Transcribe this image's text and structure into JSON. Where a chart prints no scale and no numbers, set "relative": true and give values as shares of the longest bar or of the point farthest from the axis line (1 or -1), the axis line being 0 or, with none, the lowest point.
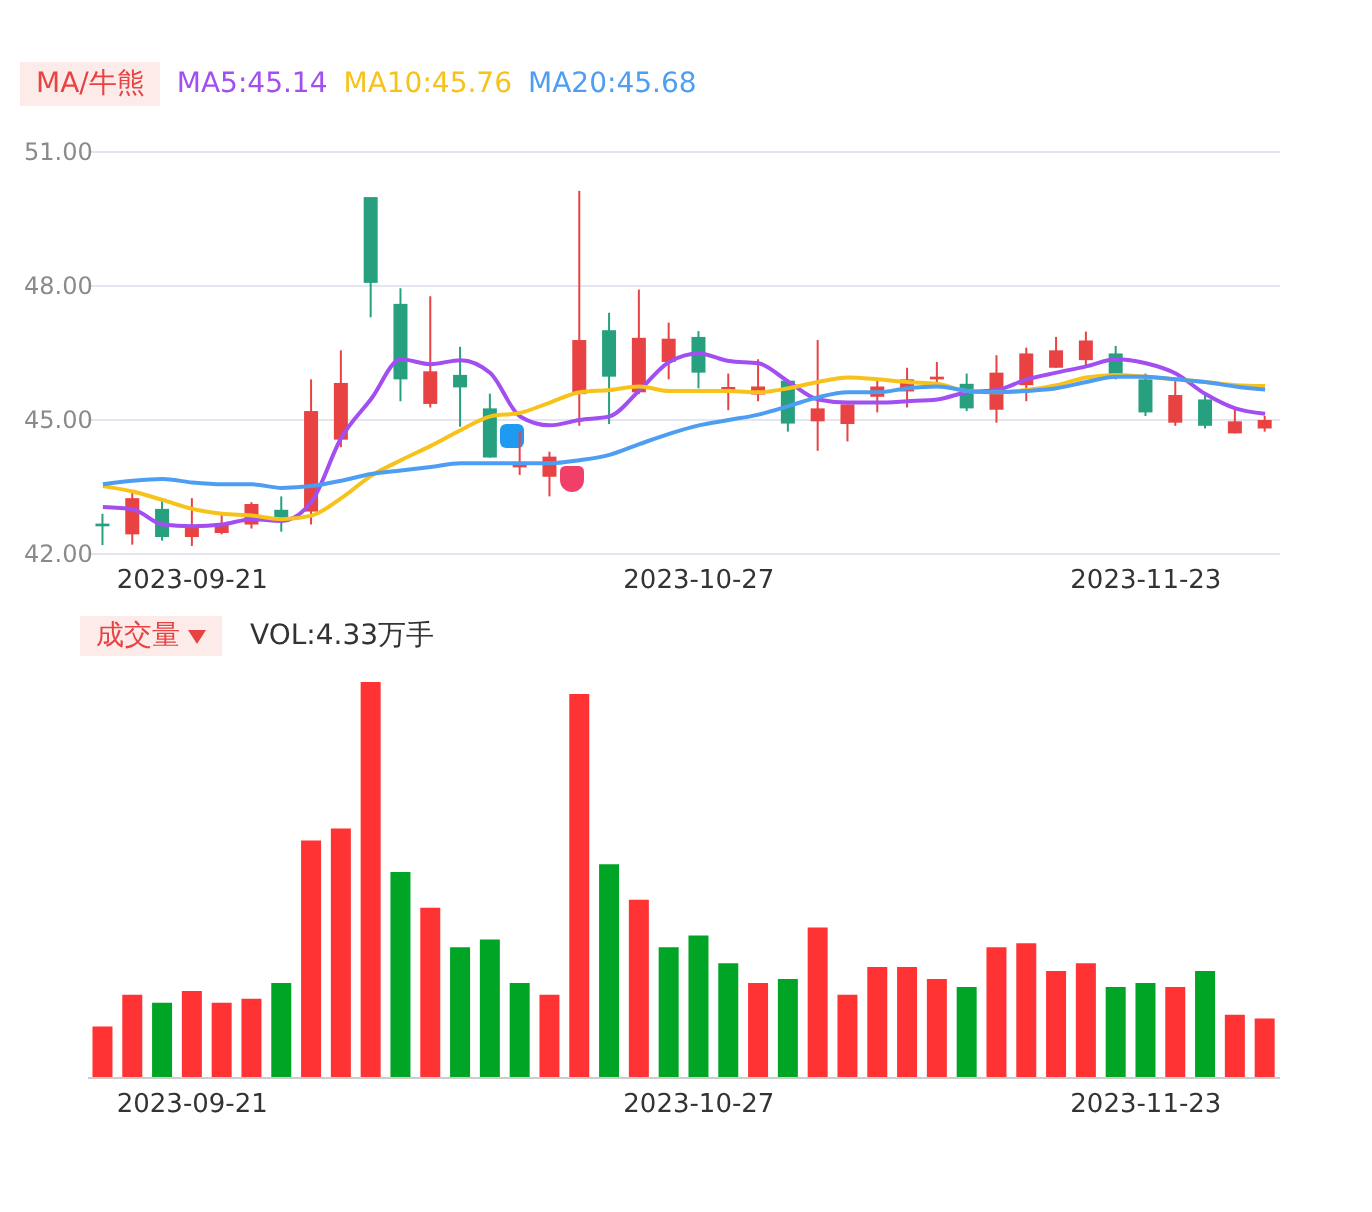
{
  "chart_data": [
    {
      "type": "candlestick",
      "legend_title": "MA/牛熊",
      "legend": "top left",
      "grid": "y",
      "categories": [
        null,
        null,
        null,
        "2023-09-21",
        null,
        null,
        null,
        null,
        null,
        null,
        null,
        null,
        null,
        null,
        null,
        null,
        null,
        null,
        null,
        null,
        "2023-10-27",
        null,
        null,
        null,
        null,
        null,
        null,
        null,
        null,
        null,
        null,
        null,
        null,
        null,
        null,
        "2023-11-23",
        null,
        null,
        null,
        null
      ],
      "ohlc": [
        [
          42.68,
          42.9,
          42.2,
          42.62
        ],
        [
          42.44,
          43.38,
          42.21,
          43.25
        ],
        [
          43.01,
          43.21,
          42.3,
          42.38
        ],
        [
          42.38,
          43.25,
          42.18,
          42.6
        ],
        [
          42.47,
          42.89,
          42.44,
          42.66
        ],
        [
          42.66,
          43.16,
          42.57,
          43.12
        ],
        [
          42.99,
          43.29,
          42.5,
          42.75
        ],
        [
          42.95,
          45.91,
          42.66,
          45.2
        ],
        [
          44.56,
          46.56,
          44.39,
          45.83
        ],
        [
          49.99,
          49.99,
          47.3,
          48.07
        ],
        [
          47.6,
          47.95,
          45.42,
          45.91
        ],
        [
          45.36,
          47.77,
          45.28,
          46.09
        ],
        [
          46.01,
          46.64,
          44.85,
          45.73
        ],
        [
          45.26,
          45.59,
          44.16,
          44.16
        ],
        [
          43.94,
          44.74,
          43.77,
          44.02
        ],
        [
          43.73,
          44.29,
          43.29,
          44.18
        ],
        [
          45.58,
          50.13,
          44.87,
          46.79
        ],
        [
          47.01,
          47.4,
          44.91,
          45.97
        ],
        [
          45.62,
          47.92,
          45.58,
          46.84
        ],
        [
          46.3,
          47.18,
          45.91,
          46.82
        ],
        [
          46.86,
          46.99,
          45.71,
          46.06
        ],
        [
          45.62,
          46.04,
          45.22,
          45.74
        ],
        [
          45.57,
          46.36,
          45.42,
          45.75
        ],
        [
          45.88,
          45.91,
          44.74,
          44.92
        ],
        [
          44.97,
          46.79,
          44.31,
          45.26
        ],
        [
          44.91,
          45.35,
          44.52,
          45.35
        ],
        [
          45.52,
          45.91,
          45.17,
          45.75
        ],
        [
          45.64,
          46.17,
          45.28,
          45.91
        ],
        [
          45.91,
          46.3,
          45.75,
          45.97
        ],
        [
          45.81,
          46.04,
          45.2,
          45.26
        ],
        [
          45.23,
          46.45,
          44.94,
          46.06
        ],
        [
          45.78,
          46.62,
          45.42,
          46.49
        ],
        [
          46.17,
          46.86,
          46.17,
          46.56
        ],
        [
          46.34,
          46.98,
          46.2,
          46.78
        ],
        [
          46.49,
          46.66,
          45.91,
          46.01
        ],
        [
          45.91,
          46.04,
          45.09,
          45.17
        ],
        [
          44.94,
          45.91,
          44.87,
          45.56
        ],
        [
          45.46,
          45.59,
          44.81,
          44.87
        ],
        [
          44.7,
          45.26,
          44.7,
          44.97
        ],
        [
          44.81,
          45.09,
          44.74,
          45.0
        ]
      ],
      "colors": [
        "#26a07f",
        "#e84242",
        "#26a07f",
        "#e84242",
        "#e84242",
        "#e84242",
        "#26a07f",
        "#e84242",
        "#e84242",
        "#26a07f",
        "#26a07f",
        "#e84242",
        "#26a07f",
        "#26a07f",
        "#e84242",
        "#e84242",
        "#e84242",
        "#26a07f",
        "#e84242",
        "#e84242",
        "#26a07f",
        "#e84242",
        "#e84242",
        "#26a07f",
        "#e84242",
        "#e84242",
        "#e84242",
        "#e84242",
        "#e84242",
        "#26a07f",
        "#e84242",
        "#e84242",
        "#e84242",
        "#e84242",
        "#26a07f",
        "#26a07f",
        "#e84242",
        "#26a07f",
        "#e84242",
        "#e84242"
      ],
      "series": [
        {
          "name": "MA5:45.14",
          "type": "line",
          "color": "#a24ef0",
          "values": [
            43.05,
            43.0,
            42.66,
            42.62,
            42.66,
            42.78,
            42.74,
            43.17,
            44.6,
            45.47,
            46.36,
            46.25,
            46.34,
            46.05,
            45.08,
            44.88,
            45.0,
            45.08,
            45.66,
            46.3,
            46.49,
            46.32,
            46.27,
            45.86,
            45.46,
            45.39,
            45.39,
            45.42,
            45.46,
            45.62,
            45.67,
            45.91,
            46.06,
            46.2,
            46.36,
            46.27,
            46.04,
            45.58,
            45.26,
            45.14
          ]
        },
        {
          "name": "MA10:45.76",
          "type": "line",
          "color": "#f7c21a",
          "values": [
            43.52,
            43.4,
            43.21,
            43.01,
            42.9,
            42.86,
            42.78,
            42.86,
            43.25,
            43.75,
            44.1,
            44.42,
            44.77,
            45.08,
            45.16,
            45.39,
            45.62,
            45.67,
            45.75,
            45.65,
            45.65,
            45.65,
            45.62,
            45.71,
            45.85,
            45.95,
            45.91,
            45.85,
            45.81,
            45.65,
            45.62,
            45.67,
            45.78,
            45.95,
            46.01,
            45.97,
            45.91,
            45.85,
            45.78,
            45.76
          ]
        },
        {
          "name": "MA20:45.68",
          "type": "line",
          "color": "#4d9ef2",
          "values": [
            43.56,
            43.64,
            43.68,
            43.6,
            43.56,
            43.56,
            43.48,
            43.52,
            43.64,
            43.79,
            43.87,
            43.95,
            44.03,
            44.03,
            44.03,
            44.03,
            44.1,
            44.22,
            44.46,
            44.69,
            44.88,
            45.0,
            45.12,
            45.31,
            45.51,
            45.62,
            45.62,
            45.71,
            45.75,
            45.65,
            45.62,
            45.65,
            45.71,
            45.85,
            45.97,
            45.97,
            45.91,
            45.85,
            45.75,
            45.68
          ]
        }
      ],
      "ylim": [
        42,
        51
      ],
      "yticks": [
        {
          "value": 42,
          "label": "42.00"
        },
        {
          "value": 45,
          "label": "45.00"
        },
        {
          "value": 48,
          "label": "48.00"
        },
        {
          "value": 51,
          "label": "51.00"
        }
      ]
    },
    {
      "type": "bar",
      "relative": true,
      "legend_title": "成交量",
      "annotations": [
        "VOL:4.33万手"
      ],
      "tick_labels": "x",
      "categories": [
        null,
        null,
        null,
        "2023-09-21",
        null,
        null,
        null,
        null,
        null,
        null,
        null,
        null,
        null,
        null,
        null,
        null,
        null,
        null,
        null,
        null,
        "2023-10-27",
        null,
        null,
        null,
        null,
        null,
        null,
        null,
        null,
        null,
        null,
        null,
        null,
        null,
        null,
        "2023-11-23",
        null,
        null,
        null,
        null
      ],
      "values": [
        0.13,
        0.21,
        0.19,
        0.22,
        0.19,
        0.2,
        0.24,
        0.6,
        0.63,
        1,
        0.52,
        0.43,
        0.33,
        0.35,
        0.24,
        0.21,
        0.97,
        0.54,
        0.45,
        0.33,
        0.36,
        0.29,
        0.24,
        0.25,
        0.38,
        0.21,
        0.28,
        0.28,
        0.25,
        0.23,
        0.33,
        0.34,
        0.27,
        0.29,
        0.23,
        0.24,
        0.23,
        0.27,
        0.16,
        0.15
      ],
      "colors": [
        "#ff3333",
        "#ff3333",
        "#00a526",
        "#ff3333",
        "#ff3333",
        "#ff3333",
        "#00a526",
        "#ff3333",
        "#ff3333",
        "#ff3333",
        "#00a526",
        "#ff3333",
        "#00a526",
        "#00a526",
        "#00a526",
        "#ff3333",
        "#ff3333",
        "#00a526",
        "#ff3333",
        "#00a526",
        "#00a526",
        "#00a526",
        "#ff3333",
        "#00a526",
        "#ff3333",
        "#ff3333",
        "#ff3333",
        "#ff3333",
        "#ff3333",
        "#00a526",
        "#ff3333",
        "#ff3333",
        "#ff3333",
        "#ff3333",
        "#00a526",
        "#00a526",
        "#ff3333",
        "#00a526",
        "#ff3333",
        "#ff3333"
      ]
    }
  ]
}
